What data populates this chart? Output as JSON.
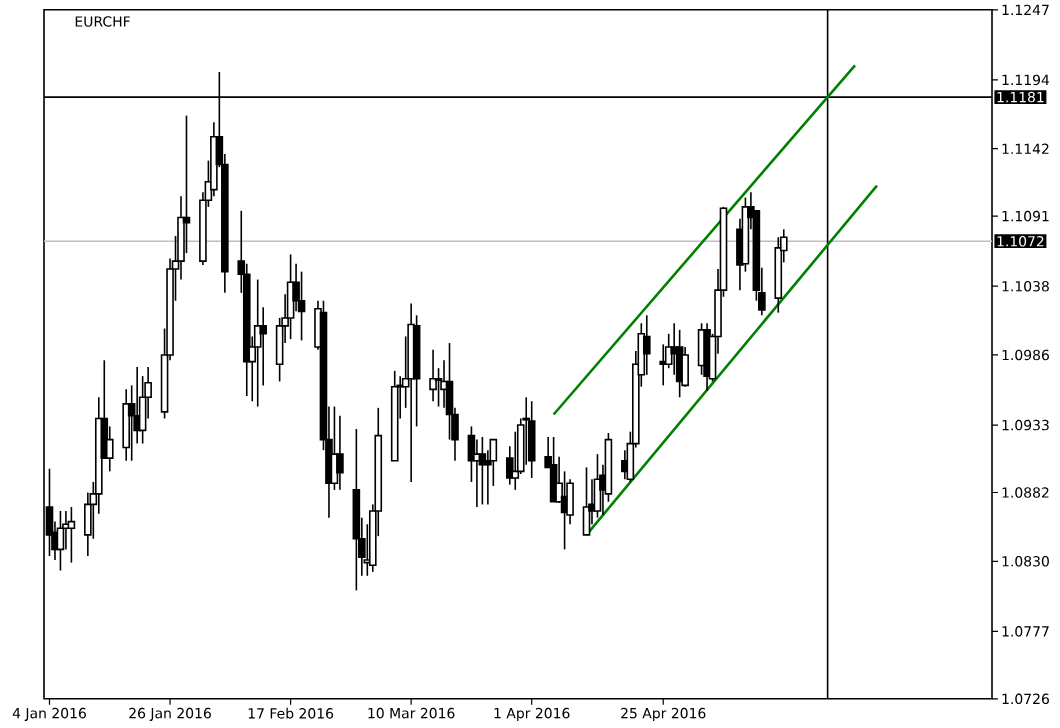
{
  "chart_data": {
    "type": "candlestick",
    "title": "EURCHF",
    "xlim": [
      "2016-01-03",
      "2016-06-24"
    ],
    "ylim": [
      1.0726,
      1.1247
    ],
    "xticks": [
      {
        "value": "2016-01-04",
        "label": "4 Jan 2016"
      },
      {
        "value": "2016-01-26",
        "label": "26 Jan 2016"
      },
      {
        "value": "2016-02-17",
        "label": "17 Feb 2016"
      },
      {
        "value": "2016-03-10",
        "label": "10 Mar 2016"
      },
      {
        "value": "2016-04-01",
        "label": "1 Apr 2016"
      },
      {
        "value": "2016-04-25",
        "label": "25 Apr 2016"
      }
    ],
    "yticks": [
      1.0726,
      1.0777,
      {
        "value": 1.083,
        "label": "1.0830"
      },
      1.0882,
      1.0933,
      1.0986,
      1.1038,
      1.1091,
      1.1142,
      1.1194,
      1.1247
    ],
    "ref_lines": [
      {
        "axis": "y",
        "value": 1.1181,
        "label": "1.1181",
        "color": "#000000"
      },
      {
        "axis": "y",
        "value": 1.1072,
        "label": "1.1072",
        "color": "#c0c0c0"
      },
      {
        "axis": "x",
        "value": "2016-05-25",
        "color": "#000000"
      }
    ],
    "series": [
      {
        "type": "line",
        "color": "#008000",
        "x": [
          "2016-04-05",
          "2016-05-30"
        ],
        "values": [
          1.0941,
          1.1205
        ]
      },
      {
        "type": "line",
        "color": "#008000",
        "x": [
          "2016-04-11",
          "2016-06-03"
        ],
        "values": [
          1.085,
          1.1114
        ]
      },
      {
        "type": "candlestick",
        "color": "#000000",
        "x": [
          "2016-01-04",
          "2016-01-05",
          "2016-01-06",
          "2016-01-07",
          "2016-01-08",
          "2016-01-11",
          "2016-01-12",
          "2016-01-13",
          "2016-01-14",
          "2016-01-15",
          "2016-01-18",
          "2016-01-19",
          "2016-01-20",
          "2016-01-21",
          "2016-01-22",
          "2016-01-25",
          "2016-01-26",
          "2016-01-27",
          "2016-01-28",
          "2016-01-29",
          "2016-02-01",
          "2016-02-02",
          "2016-02-03",
          "2016-02-04",
          "2016-02-05",
          "2016-02-08",
          "2016-02-09",
          "2016-02-10",
          "2016-02-11",
          "2016-02-12",
          "2016-02-15",
          "2016-02-16",
          "2016-02-17",
          "2016-02-18",
          "2016-02-19",
          "2016-02-22",
          "2016-02-23",
          "2016-02-24",
          "2016-02-25",
          "2016-02-26",
          "2016-02-29",
          "2016-03-01",
          "2016-03-02",
          "2016-03-03",
          "2016-03-04",
          "2016-03-07",
          "2016-03-08",
          "2016-03-09",
          "2016-03-10",
          "2016-03-11",
          "2016-03-14",
          "2016-03-15",
          "2016-03-16",
          "2016-03-17",
          "2016-03-18",
          "2016-03-21",
          "2016-03-22",
          "2016-03-23",
          "2016-03-24",
          "2016-03-25",
          "2016-03-28",
          "2016-03-29",
          "2016-03-30",
          "2016-03-31",
          "2016-04-01",
          "2016-04-04",
          "2016-04-05",
          "2016-04-06",
          "2016-04-07",
          "2016-04-08",
          "2016-04-11",
          "2016-04-12",
          "2016-04-13",
          "2016-04-14",
          "2016-04-15",
          "2016-04-18",
          "2016-04-19",
          "2016-04-20",
          "2016-04-21",
          "2016-04-22",
          "2016-04-25",
          "2016-04-26",
          "2016-04-27",
          "2016-04-28",
          "2016-04-29",
          "2016-05-02",
          "2016-05-03",
          "2016-05-04",
          "2016-05-05",
          "2016-05-06",
          "2016-05-09",
          "2016-05-10",
          "2016-05-11",
          "2016-05-12",
          "2016-05-13",
          "2016-05-16",
          "2016-05-17"
        ],
        "ohlc": [
          [
            1.0871,
            1.09,
            1.0834,
            1.085
          ],
          [
            1.0852,
            1.086,
            1.0831,
            1.0839
          ],
          [
            1.0839,
            1.0868,
            1.0823,
            1.0855
          ],
          [
            1.0855,
            1.0868,
            1.0839,
            1.0858
          ],
          [
            1.0855,
            1.0871,
            1.0829,
            1.086
          ],
          [
            1.085,
            1.0882,
            1.0834,
            1.0873
          ],
          [
            1.0873,
            1.089,
            1.0847,
            1.0881
          ],
          [
            1.0881,
            1.0954,
            1.0866,
            1.0938
          ],
          [
            1.0938,
            1.0982,
            1.0908,
            1.0908
          ],
          [
            1.0908,
            1.0932,
            1.0898,
            1.0922
          ],
          [
            1.0916,
            1.096,
            1.0906,
            1.0949
          ],
          [
            1.0949,
            1.0963,
            1.0906,
            1.094
          ],
          [
            1.094,
            1.0977,
            1.0919,
            1.0929
          ],
          [
            1.0929,
            1.097,
            1.0919,
            1.0954
          ],
          [
            1.0954,
            1.0977,
            1.0938,
            1.0965
          ],
          [
            1.0943,
            1.1006,
            1.0938,
            1.0986
          ],
          [
            1.0986,
            1.1059,
            1.0982,
            1.1051
          ],
          [
            1.1051,
            1.1076,
            1.1027,
            1.1057
          ],
          [
            1.1057,
            1.1106,
            1.1043,
            1.109
          ],
          [
            1.109,
            1.1167,
            1.1063,
            1.1086
          ],
          [
            1.1057,
            1.1109,
            1.1054,
            1.1103
          ],
          [
            1.1103,
            1.1133,
            1.1098,
            1.1117
          ],
          [
            1.1111,
            1.1162,
            1.1106,
            1.1151
          ],
          [
            1.1151,
            1.12,
            1.1128,
            1.113
          ],
          [
            1.113,
            1.1138,
            1.1033,
            1.1049
          ],
          [
            1.1057,
            1.1095,
            1.1033,
            1.1047
          ],
          [
            1.1047,
            1.1055,
            1.0955,
            1.0981
          ],
          [
            1.0981,
            1.1,
            1.0951,
            1.0992
          ],
          [
            1.0992,
            1.1043,
            1.0947,
            1.1008
          ],
          [
            1.1008,
            1.1022,
            1.0963,
            1.1002
          ],
          [
            1.0979,
            1.1014,
            1.0966,
            1.1008
          ],
          [
            1.1008,
            1.1032,
            1.0995,
            1.1014
          ],
          [
            1.1014,
            1.1062,
            1.0998,
            1.1041
          ],
          [
            1.1041,
            1.1055,
            1.1019,
            1.1027
          ],
          [
            1.1027,
            1.1049,
            1.0997,
            1.1019
          ],
          [
            1.0992,
            1.1027,
            1.099,
            1.1021
          ],
          [
            1.1018,
            1.1027,
            1.0914,
            1.0922
          ],
          [
            1.0922,
            1.0947,
            1.0863,
            1.0889
          ],
          [
            1.0889,
            1.0947,
            1.0884,
            1.0911
          ],
          [
            1.0911,
            1.094,
            1.0884,
            1.0897
          ],
          [
            1.0884,
            1.093,
            1.0808,
            1.0847
          ],
          [
            1.0847,
            1.0863,
            1.0819,
            1.0833
          ],
          [
            1.0829,
            1.0858,
            1.0819,
            1.0831
          ],
          [
            1.0827,
            1.0873,
            1.0822,
            1.0868
          ],
          [
            1.0868,
            1.0946,
            1.0849,
            1.0925
          ],
          [
            1.0906,
            1.0974,
            1.0906,
            1.0962
          ],
          [
            1.0962,
            1.097,
            1.0938,
            1.0963
          ],
          [
            1.0962,
            1.1,
            1.0946,
            1.0968
          ],
          [
            1.0968,
            1.1025,
            1.089,
            1.1009
          ],
          [
            1.1008,
            1.1016,
            1.0932,
            1.0968
          ],
          [
            1.096,
            1.099,
            1.0951,
            1.0968
          ],
          [
            1.0967,
            1.0976,
            1.0947,
            1.0968
          ],
          [
            1.096,
            1.0982,
            1.0946,
            1.0966
          ],
          [
            1.0966,
            1.0995,
            1.0922,
            1.0941
          ],
          [
            1.0941,
            1.0946,
            1.0906,
            1.0922
          ],
          [
            1.0925,
            1.0932,
            1.089,
            1.0906
          ],
          [
            1.0906,
            1.0922,
            1.0871,
            1.0911
          ],
          [
            1.0911,
            1.0924,
            1.0873,
            1.0903
          ],
          [
            1.0906,
            1.0914,
            1.0873,
            1.0903
          ],
          [
            1.0906,
            1.0922,
            1.0887,
            1.0922
          ],
          [
            1.0908,
            1.0917,
            1.0888,
            1.0893
          ],
          [
            1.0893,
            1.0928,
            1.0884,
            1.0898
          ],
          [
            1.0898,
            1.0938,
            1.0896,
            1.0933
          ],
          [
            1.0937,
            1.0954,
            1.0903,
            1.0938
          ],
          [
            1.0936,
            1.0951,
            1.0893,
            1.0906
          ],
          [
            1.0909,
            1.0924,
            1.0901,
            1.0901
          ],
          [
            1.0903,
            1.0924,
            1.0875,
            1.0875
          ],
          [
            1.0875,
            1.0909,
            1.0874,
            1.0889
          ],
          [
            1.0879,
            1.0898,
            1.0839,
            1.0867
          ],
          [
            1.0865,
            1.0892,
            1.0858,
            1.0889
          ],
          [
            1.085,
            1.0901,
            1.085,
            1.0871
          ],
          [
            1.0873,
            1.0892,
            1.0858,
            1.0868
          ],
          [
            1.0868,
            1.0911,
            1.0863,
            1.0892
          ],
          [
            1.0895,
            1.0903,
            1.0865,
            1.0884
          ],
          [
            1.0881,
            1.0927,
            1.0875,
            1.0922
          ],
          [
            1.0906,
            1.0914,
            1.0892,
            1.0898
          ],
          [
            1.0892,
            1.0928,
            1.089,
            1.0919
          ],
          [
            1.0919,
            1.0989,
            1.0916,
            1.0979
          ],
          [
            1.0971,
            1.101,
            1.0962,
            1.1002
          ],
          [
            1.1,
            1.1016,
            1.0971,
            1.0987
          ],
          [
            1.0981,
            1.0994,
            1.0963,
            1.0979
          ],
          [
            1.0979,
            1.1002,
            1.0976,
            1.0992
          ],
          [
            1.0992,
            1.101,
            1.0971,
            1.0987
          ],
          [
            1.0992,
            1.1005,
            1.0954,
            1.0966
          ],
          [
            1.0963,
            1.0992,
            1.0962,
            1.0986
          ],
          [
            1.0978,
            1.101,
            1.0971,
            1.1005
          ],
          [
            1.1005,
            1.101,
            1.0959,
            1.097
          ],
          [
            1.0968,
            1.1002,
            1.0966,
            1.1
          ],
          [
            1.1,
            1.1051,
            1.0987,
            1.1035
          ],
          [
            1.1035,
            1.1098,
            1.103,
            1.1097
          ],
          [
            1.1081,
            1.1089,
            1.1035,
            1.1054
          ],
          [
            1.1055,
            1.1105,
            1.1049,
            1.1098
          ],
          [
            1.1098,
            1.1109,
            1.1081,
            1.109
          ],
          [
            1.1095,
            1.1095,
            1.1027,
            1.1035
          ],
          [
            1.1033,
            1.1052,
            1.1016,
            1.102
          ],
          [
            1.1029,
            1.1075,
            1.1018,
            1.1067
          ],
          [
            1.1065,
            1.1081,
            1.1056,
            1.1075
          ]
        ]
      }
    ]
  }
}
